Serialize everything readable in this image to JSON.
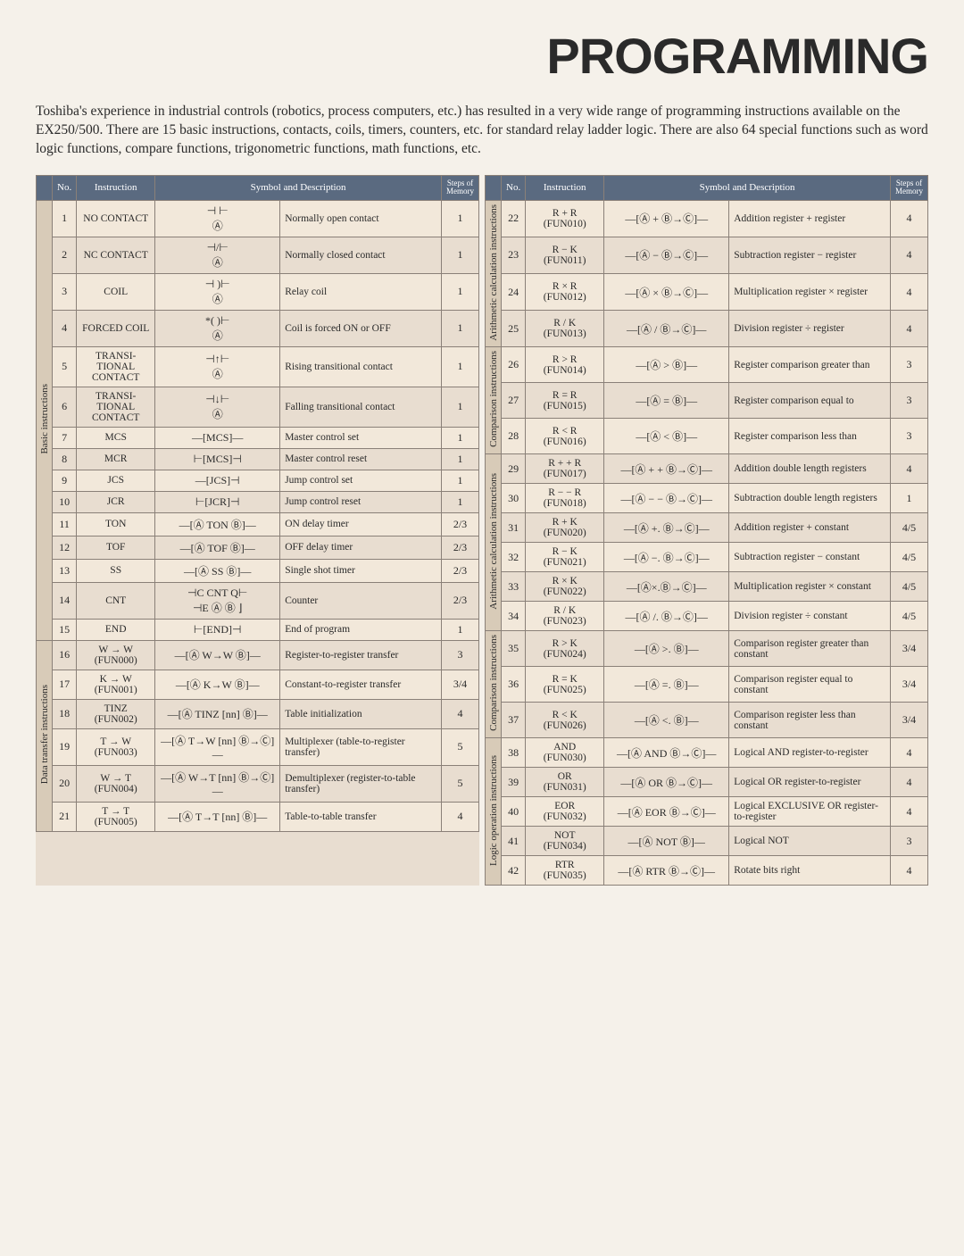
{
  "title": "PROGRAMMING",
  "intro": "Toshiba's experience in industrial controls (robotics, process computers, etc.) has resulted in a very wide range of programming instructions available on the EX250/500. There are 15 basic instructions, contacts, coils, timers, counters, etc. for standard relay ladder logic. There are also 64 special functions such as word logic functions, compare functions, trigonometric functions, math functions, etc.",
  "headers": {
    "no": "No.",
    "instruction": "Instruction",
    "symdesc": "Symbol and Description",
    "steps": "Steps of Memory"
  },
  "left": [
    {
      "cat": "Basic instructions",
      "span": 15,
      "rows": [
        {
          "no": "1",
          "instr": "NO CONTACT",
          "sym": "⊣ ⊢\nⒶ",
          "desc": "Normally open contact",
          "steps": "1"
        },
        {
          "no": "2",
          "instr": "NC CONTACT",
          "sym": "⊣/⊢\nⒶ",
          "desc": "Normally closed contact",
          "steps": "1"
        },
        {
          "no": "3",
          "instr": "COIL",
          "sym": "⊣  )⊢\nⒶ",
          "desc": "Relay coil",
          "steps": "1"
        },
        {
          "no": "4",
          "instr": "FORCED COIL",
          "sym": "*(  )⊢\nⒶ",
          "desc": "Coil is forced ON or OFF",
          "steps": "1"
        },
        {
          "no": "5",
          "instr": "TRANSI-TIONAL CONTACT",
          "sym": "⊣↑⊢\nⒶ",
          "desc": "Rising transitional contact",
          "steps": "1"
        },
        {
          "no": "6",
          "instr": "TRANSI-TIONAL CONTACT",
          "sym": "⊣↓⊢\nⒶ",
          "desc": "Falling transitional contact",
          "steps": "1"
        },
        {
          "no": "7",
          "instr": "MCS",
          "sym": "—[MCS]—",
          "desc": "Master control set",
          "steps": "1"
        },
        {
          "no": "8",
          "instr": "MCR",
          "sym": "⊢[MCS]⊣",
          "desc": "Master control reset",
          "steps": "1"
        },
        {
          "no": "9",
          "instr": "JCS",
          "sym": "—[JCS]⊣",
          "desc": "Jump control set",
          "steps": "1"
        },
        {
          "no": "10",
          "instr": "JCR",
          "sym": "⊢[JCR]⊣",
          "desc": "Jump control reset",
          "steps": "1"
        },
        {
          "no": "11",
          "instr": "TON",
          "sym": "—[Ⓐ TON Ⓑ]—",
          "desc": "ON delay timer",
          "steps": "2/3"
        },
        {
          "no": "12",
          "instr": "TOF",
          "sym": "—[Ⓐ TOF Ⓑ]—",
          "desc": "OFF delay timer",
          "steps": "2/3"
        },
        {
          "no": "13",
          "instr": "SS",
          "sym": "—[Ⓐ SS Ⓑ]—",
          "desc": "Single shot timer",
          "steps": "2/3"
        },
        {
          "no": "14",
          "instr": "CNT",
          "sym": "⊣C CNT Q⊢\n⊣E Ⓐ  Ⓑ ⌋",
          "desc": "Counter",
          "steps": "2/3"
        },
        {
          "no": "15",
          "instr": "END",
          "sym": "⊢[END]⊣",
          "desc": "End of program",
          "steps": "1"
        }
      ]
    },
    {
      "cat": "Data transfer instructions",
      "span": 6,
      "rows": [
        {
          "no": "16",
          "instr": "W → W\n(FUN000)",
          "sym": "—[Ⓐ W→W Ⓑ]—",
          "desc": "Register-to-register transfer",
          "steps": "3"
        },
        {
          "no": "17",
          "instr": "K → W\n(FUN001)",
          "sym": "—[Ⓐ K→W Ⓑ]—",
          "desc": "Constant-to-register transfer",
          "steps": "3/4"
        },
        {
          "no": "18",
          "instr": "TINZ\n(FUN002)",
          "sym": "—[Ⓐ TINZ [nn] Ⓑ]—",
          "desc": "Table initialization",
          "steps": "4"
        },
        {
          "no": "19",
          "instr": "T → W\n(FUN003)",
          "sym": "—[Ⓐ T→W [nn] Ⓑ→Ⓒ]—",
          "desc": "Multiplexer (table-to-register transfer)",
          "steps": "5"
        },
        {
          "no": "20",
          "instr": "W → T\n(FUN004)",
          "sym": "—[Ⓐ W→T [nn] Ⓑ→Ⓒ]—",
          "desc": "Demultiplexer (register-to-table transfer)",
          "steps": "5"
        },
        {
          "no": "21",
          "instr": "T → T\n(FUN005)",
          "sym": "—[Ⓐ T→T [nn] Ⓑ]—",
          "desc": "Table-to-table transfer",
          "steps": "4"
        }
      ]
    }
  ],
  "right": [
    {
      "cat": "Arithmetic calculation instructions",
      "span": 4,
      "rows": [
        {
          "no": "22",
          "instr": "R + R\n(FUN010)",
          "sym": "—[Ⓐ + Ⓑ→Ⓒ]—",
          "desc": "Addition register + register",
          "steps": "4"
        },
        {
          "no": "23",
          "instr": "R − K\n(FUN011)",
          "sym": "—[Ⓐ − Ⓑ→Ⓒ]—",
          "desc": "Subtraction register − register",
          "steps": "4"
        },
        {
          "no": "24",
          "instr": "R × R\n(FUN012)",
          "sym": "—[Ⓐ × Ⓑ→Ⓒ]—",
          "desc": "Multiplication register × register",
          "steps": "4"
        },
        {
          "no": "25",
          "instr": "R / K\n(FUN013)",
          "sym": "—[Ⓐ / Ⓑ→Ⓒ]—",
          "desc": "Division register ÷ register",
          "steps": "4"
        }
      ]
    },
    {
      "cat": "Comparison instructions",
      "span": 3,
      "rows": [
        {
          "no": "26",
          "instr": "R > R\n(FUN014)",
          "sym": "—[Ⓐ > Ⓑ]—",
          "desc": "Register comparison greater than",
          "steps": "3"
        },
        {
          "no": "27",
          "instr": "R = R\n(FUN015)",
          "sym": "—[Ⓐ = Ⓑ]—",
          "desc": "Register comparison equal to",
          "steps": "3"
        },
        {
          "no": "28",
          "instr": "R < R\n(FUN016)",
          "sym": "—[Ⓐ < Ⓑ]—",
          "desc": "Register comparison less than",
          "steps": "3"
        }
      ]
    },
    {
      "cat": "Arithmetic calculation instructions",
      "span": 6,
      "rows": [
        {
          "no": "29",
          "instr": "R + + R\n(FUN017)",
          "sym": "—[Ⓐ + + Ⓑ→Ⓒ]—",
          "desc": "Addition double length registers",
          "steps": "4"
        },
        {
          "no": "30",
          "instr": "R − − R\n(FUN018)",
          "sym": "—[Ⓐ − − Ⓑ→Ⓒ]—",
          "desc": "Subtraction double length registers",
          "steps": "1"
        },
        {
          "no": "31",
          "instr": "R + K\n(FUN020)",
          "sym": "—[Ⓐ +. Ⓑ→Ⓒ]—",
          "desc": "Addition register + constant",
          "steps": "4/5"
        },
        {
          "no": "32",
          "instr": "R − K\n(FUN021)",
          "sym": "—[Ⓐ −. Ⓑ→Ⓒ]—",
          "desc": "Subtraction register − constant",
          "steps": "4/5"
        },
        {
          "no": "33",
          "instr": "R × K\n(FUN022)",
          "sym": "—[Ⓐ×.Ⓑ→Ⓒ]—",
          "desc": "Multiplication register × constant",
          "steps": "4/5"
        },
        {
          "no": "34",
          "instr": "R / K\n(FUN023)",
          "sym": "—[Ⓐ /. Ⓑ→Ⓒ]—",
          "desc": "Division register ÷ constant",
          "steps": "4/5"
        }
      ]
    },
    {
      "cat": "Comparison instructions",
      "span": 3,
      "rows": [
        {
          "no": "35",
          "instr": "R > K\n(FUN024)",
          "sym": "—[Ⓐ >. Ⓑ]—",
          "desc": "Comparison register greater than constant",
          "steps": "3/4"
        },
        {
          "no": "36",
          "instr": "R = K\n(FUN025)",
          "sym": "—[Ⓐ =. Ⓑ]—",
          "desc": "Comparison register equal to constant",
          "steps": "3/4"
        },
        {
          "no": "37",
          "instr": "R < K\n(FUN026)",
          "sym": "—[Ⓐ <. Ⓑ]—",
          "desc": "Comparison register less than constant",
          "steps": "3/4"
        }
      ]
    },
    {
      "cat": "Logic operation instructions",
      "span": 5,
      "rows": [
        {
          "no": "38",
          "instr": "AND\n(FUN030)",
          "sym": "—[Ⓐ AND Ⓑ→Ⓒ]—",
          "desc": "Logical AND register-to-register",
          "steps": "4"
        },
        {
          "no": "39",
          "instr": "OR\n(FUN031)",
          "sym": "—[Ⓐ OR Ⓑ→Ⓒ]—",
          "desc": "Logical OR register-to-register",
          "steps": "4"
        },
        {
          "no": "40",
          "instr": "EOR\n(FUN032)",
          "sym": "—[Ⓐ EOR Ⓑ→Ⓒ]—",
          "desc": "Logical EXCLUSIVE OR register-to-register",
          "steps": "4"
        },
        {
          "no": "41",
          "instr": "NOT\n(FUN034)",
          "sym": "—[Ⓐ NOT Ⓑ]—",
          "desc": "Logical NOT",
          "steps": "3"
        },
        {
          "no": "42",
          "instr": "RTR\n(FUN035)",
          "sym": "—[Ⓐ RTR Ⓑ→Ⓒ]—",
          "desc": "Rotate bits right",
          "steps": "4"
        }
      ]
    }
  ]
}
